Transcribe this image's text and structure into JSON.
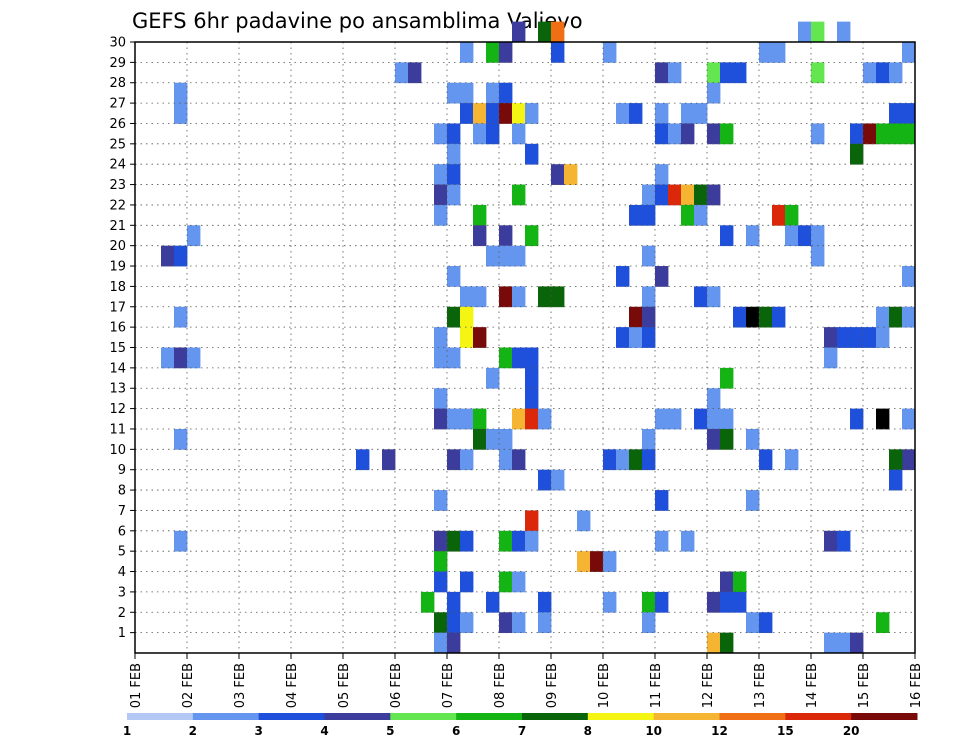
{
  "chart_data": {
    "type": "heatmap",
    "title": "GEFS 6hr padavine po ansamblima Valjevo",
    "xlabel": "",
    "ylabel": "",
    "x_ticks": [
      "01 FEB",
      "02 FEB",
      "03 FEB",
      "04 FEB",
      "05 FEB",
      "06 FEB",
      "07 FEB",
      "08 FEB",
      "09 FEB",
      "10 FEB",
      "11 FEB",
      "12 FEB",
      "13 FEB",
      "14 FEB",
      "15 FEB",
      "16 FEB"
    ],
    "y_ticks": [
      "1",
      "2",
      "3",
      "4",
      "5",
      "6",
      "7",
      "8",
      "9",
      "10",
      "11",
      "12",
      "13",
      "14",
      "15",
      "16",
      "17",
      "18",
      "19",
      "20",
      "21",
      "22",
      "23",
      "24",
      "25",
      "26",
      "27",
      "28",
      "29",
      "30"
    ],
    "xlim": [
      0,
      60
    ],
    "ylim": [
      0,
      30
    ],
    "grid": true,
    "legend": {
      "position": "bottom",
      "labels": [
        "1",
        "2",
        "3",
        "4",
        "5",
        "6",
        "7",
        "8",
        "10",
        "12",
        "15",
        "20"
      ],
      "colors": [
        "#b4c8f5",
        "#6496f0",
        "#1e50dc",
        "#3c3c9c",
        "#64e650",
        "#14b414",
        "#0a640a",
        "#f5f514",
        "#f5b432",
        "#f06e14",
        "#dc280a",
        "#780a0a"
      ]
    },
    "cells": [
      [
        29,
        30,
        3
      ],
      [
        31,
        30,
        6
      ],
      [
        32,
        30,
        9
      ],
      [
        51,
        30,
        1
      ],
      [
        52,
        30,
        4
      ],
      [
        54,
        30,
        1
      ],
      [
        25,
        29,
        1
      ],
      [
        27,
        29,
        5
      ],
      [
        28,
        29,
        3
      ],
      [
        32,
        29,
        2
      ],
      [
        36,
        29,
        1
      ],
      [
        48,
        29,
        1
      ],
      [
        49,
        29,
        1
      ],
      [
        59,
        29,
        1
      ],
      [
        20,
        28,
        1
      ],
      [
        21,
        28,
        3
      ],
      [
        40,
        28,
        3
      ],
      [
        41,
        28,
        1
      ],
      [
        44,
        28,
        4
      ],
      [
        45,
        28,
        2
      ],
      [
        46,
        28,
        2
      ],
      [
        52,
        28,
        4
      ],
      [
        56,
        28,
        1
      ],
      [
        57,
        28,
        2
      ],
      [
        58,
        28,
        1
      ],
      [
        3,
        27,
        1
      ],
      [
        24,
        27,
        1
      ],
      [
        25,
        27,
        1
      ],
      [
        27,
        27,
        1
      ],
      [
        28,
        27,
        2
      ],
      [
        44,
        27,
        1
      ],
      [
        3,
        26,
        1
      ],
      [
        25,
        26,
        2
      ],
      [
        26,
        26,
        8
      ],
      [
        27,
        26,
        2
      ],
      [
        28,
        26,
        11
      ],
      [
        29,
        26,
        7
      ],
      [
        30,
        26,
        1
      ],
      [
        37,
        26,
        1
      ],
      [
        38,
        26,
        2
      ],
      [
        40,
        26,
        1
      ],
      [
        42,
        26,
        1
      ],
      [
        43,
        26,
        1
      ],
      [
        58,
        26,
        2
      ],
      [
        59,
        26,
        2
      ],
      [
        23,
        25,
        1
      ],
      [
        24,
        25,
        2
      ],
      [
        26,
        25,
        1
      ],
      [
        27,
        25,
        2
      ],
      [
        29,
        25,
        1
      ],
      [
        40,
        25,
        2
      ],
      [
        41,
        25,
        1
      ],
      [
        42,
        25,
        3
      ],
      [
        44,
        25,
        3
      ],
      [
        45,
        25,
        5
      ],
      [
        52,
        25,
        1
      ],
      [
        55,
        25,
        2
      ],
      [
        56,
        25,
        11
      ],
      [
        57,
        25,
        5
      ],
      [
        58,
        25,
        5
      ],
      [
        59,
        25,
        5
      ],
      [
        24,
        24,
        1
      ],
      [
        30,
        24,
        2
      ],
      [
        55,
        24,
        6
      ],
      [
        23,
        23,
        1
      ],
      [
        24,
        23,
        2
      ],
      [
        32,
        23,
        3
      ],
      [
        33,
        23,
        8
      ],
      [
        40,
        23,
        1
      ],
      [
        23,
        22,
        3
      ],
      [
        24,
        22,
        1
      ],
      [
        29,
        22,
        5
      ],
      [
        39,
        22,
        1
      ],
      [
        40,
        22,
        2
      ],
      [
        41,
        22,
        10
      ],
      [
        42,
        22,
        8
      ],
      [
        43,
        22,
        6
      ],
      [
        44,
        22,
        3
      ],
      [
        23,
        21,
        1
      ],
      [
        26,
        21,
        5
      ],
      [
        38,
        21,
        2
      ],
      [
        39,
        21,
        2
      ],
      [
        42,
        21,
        5
      ],
      [
        43,
        21,
        1
      ],
      [
        49,
        21,
        10
      ],
      [
        50,
        21,
        5
      ],
      [
        4,
        20,
        1
      ],
      [
        26,
        20,
        3
      ],
      [
        28,
        20,
        3
      ],
      [
        30,
        20,
        5
      ],
      [
        45,
        20,
        2
      ],
      [
        47,
        20,
        1
      ],
      [
        50,
        20,
        1
      ],
      [
        51,
        20,
        2
      ],
      [
        52,
        20,
        1
      ],
      [
        2,
        19,
        3
      ],
      [
        3,
        19,
        2
      ],
      [
        27,
        19,
        1
      ],
      [
        28,
        19,
        1
      ],
      [
        29,
        19,
        1
      ],
      [
        39,
        19,
        1
      ],
      [
        52,
        19,
        1
      ],
      [
        24,
        18,
        1
      ],
      [
        37,
        18,
        2
      ],
      [
        40,
        18,
        3
      ],
      [
        59,
        18,
        1
      ],
      [
        25,
        17,
        1
      ],
      [
        26,
        17,
        1
      ],
      [
        28,
        17,
        11
      ],
      [
        29,
        17,
        1
      ],
      [
        31,
        17,
        6
      ],
      [
        32,
        17,
        6
      ],
      [
        39,
        17,
        1
      ],
      [
        43,
        17,
        2
      ],
      [
        44,
        17,
        1
      ],
      [
        3,
        16,
        1
      ],
      [
        24,
        16,
        6
      ],
      [
        25,
        16,
        7
      ],
      [
        38,
        16,
        11
      ],
      [
        39,
        16,
        3
      ],
      [
        46,
        16,
        2
      ],
      [
        47,
        16,
        15
      ],
      [
        48,
        16,
        6
      ],
      [
        49,
        16,
        2
      ],
      [
        57,
        16,
        1
      ],
      [
        58,
        16,
        6
      ],
      [
        59,
        16,
        1
      ],
      [
        23,
        15,
        1
      ],
      [
        25,
        15,
        7
      ],
      [
        26,
        15,
        11
      ],
      [
        37,
        15,
        2
      ],
      [
        38,
        15,
        1
      ],
      [
        39,
        15,
        2
      ],
      [
        53,
        15,
        3
      ],
      [
        54,
        15,
        2
      ],
      [
        55,
        15,
        2
      ],
      [
        56,
        15,
        2
      ],
      [
        57,
        15,
        1
      ],
      [
        2,
        14,
        1
      ],
      [
        3,
        14,
        3
      ],
      [
        4,
        14,
        1
      ],
      [
        23,
        14,
        1
      ],
      [
        24,
        14,
        1
      ],
      [
        28,
        14,
        5
      ],
      [
        29,
        14,
        2
      ],
      [
        30,
        14,
        2
      ],
      [
        53,
        14,
        1
      ],
      [
        27,
        13,
        1
      ],
      [
        30,
        13,
        2
      ],
      [
        45,
        13,
        5
      ],
      [
        23,
        12,
        1
      ],
      [
        30,
        12,
        2
      ],
      [
        44,
        12,
        1
      ],
      [
        23,
        11,
        3
      ],
      [
        24,
        11,
        1
      ],
      [
        25,
        11,
        1
      ],
      [
        26,
        11,
        5
      ],
      [
        29,
        11,
        8
      ],
      [
        30,
        11,
        10
      ],
      [
        31,
        11,
        1
      ],
      [
        40,
        11,
        1
      ],
      [
        41,
        11,
        1
      ],
      [
        43,
        11,
        2
      ],
      [
        44,
        11,
        1
      ],
      [
        45,
        11,
        1
      ],
      [
        55,
        11,
        2
      ],
      [
        57,
        11,
        20
      ],
      [
        59,
        11,
        1
      ],
      [
        3,
        10,
        1
      ],
      [
        26,
        10,
        6
      ],
      [
        27,
        10,
        1
      ],
      [
        28,
        10,
        1
      ],
      [
        39,
        10,
        1
      ],
      [
        44,
        10,
        3
      ],
      [
        45,
        10,
        6
      ],
      [
        47,
        10,
        1
      ],
      [
        17,
        9,
        2
      ],
      [
        19,
        9,
        3
      ],
      [
        24,
        9,
        3
      ],
      [
        25,
        9,
        1
      ],
      [
        28,
        9,
        1
      ],
      [
        29,
        9,
        3
      ],
      [
        36,
        9,
        2
      ],
      [
        37,
        9,
        1
      ],
      [
        38,
        9,
        6
      ],
      [
        39,
        9,
        2
      ],
      [
        48,
        9,
        2
      ],
      [
        50,
        9,
        1
      ],
      [
        59,
        9,
        3
      ],
      [
        58,
        9,
        6
      ],
      [
        31,
        8,
        2
      ],
      [
        32,
        8,
        1
      ],
      [
        58,
        8,
        2
      ],
      [
        23,
        7,
        1
      ],
      [
        40,
        7,
        2
      ],
      [
        47,
        7,
        1
      ],
      [
        30,
        6,
        10
      ],
      [
        34,
        6,
        1
      ],
      [
        3,
        5,
        1
      ],
      [
        23,
        5,
        3
      ],
      [
        24,
        5,
        6
      ],
      [
        25,
        5,
        2
      ],
      [
        28,
        5,
        5
      ],
      [
        29,
        5,
        2
      ],
      [
        30,
        5,
        1
      ],
      [
        40,
        5,
        1
      ],
      [
        42,
        5,
        1
      ],
      [
        53,
        5,
        3
      ],
      [
        54,
        5,
        2
      ],
      [
        23,
        4,
        5
      ],
      [
        34,
        4,
        8
      ],
      [
        35,
        4,
        11
      ],
      [
        36,
        4,
        1
      ],
      [
        23,
        3,
        2
      ],
      [
        25,
        3,
        2
      ],
      [
        28,
        3,
        5
      ],
      [
        29,
        3,
        1
      ],
      [
        45,
        3,
        3
      ],
      [
        46,
        3,
        5
      ],
      [
        22,
        2,
        5
      ],
      [
        24,
        2,
        2
      ],
      [
        27,
        2,
        2
      ],
      [
        31,
        2,
        2
      ],
      [
        36,
        2,
        1
      ],
      [
        39,
        2,
        5
      ],
      [
        40,
        2,
        2
      ],
      [
        44,
        2,
        3
      ],
      [
        45,
        2,
        2
      ],
      [
        46,
        2,
        2
      ],
      [
        23,
        1,
        6
      ],
      [
        24,
        1,
        2
      ],
      [
        25,
        1,
        1
      ],
      [
        28,
        1,
        3
      ],
      [
        29,
        1,
        1
      ],
      [
        31,
        1,
        1
      ],
      [
        39,
        1,
        1
      ],
      [
        47,
        1,
        1
      ],
      [
        48,
        1,
        2
      ],
      [
        57,
        1,
        5
      ],
      [
        23,
        0,
        1
      ],
      [
        24,
        0,
        3
      ],
      [
        44,
        0,
        8
      ],
      [
        45,
        0,
        6
      ],
      [
        53,
        0,
        1
      ],
      [
        54,
        0,
        1
      ],
      [
        55,
        0,
        3
      ]
    ]
  }
}
